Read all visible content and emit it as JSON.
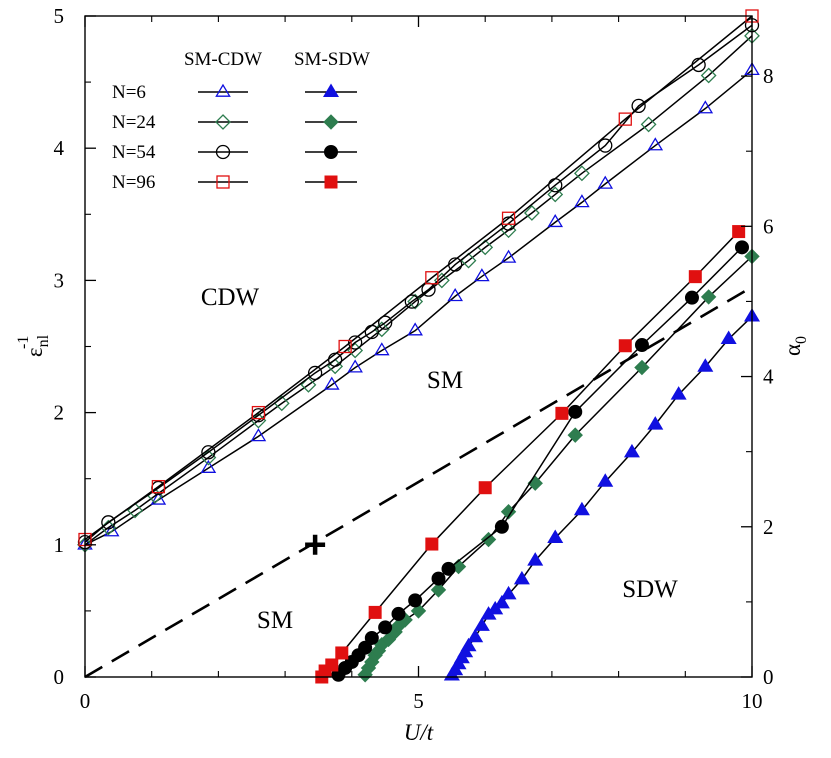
{
  "chart_data": {
    "type": "scatter",
    "title": "",
    "xlabel": "U/t",
    "ylabel_left": "ε_nl^-1",
    "ylabel_right": "α_0",
    "xlim": [
      0,
      10
    ],
    "ylim_left": [
      0,
      5
    ],
    "ylim_right": [
      0,
      8.8
    ],
    "x_ticks": [
      "0",
      "5",
      "10"
    ],
    "y_left_ticks": [
      "0",
      "1",
      "2",
      "3",
      "4",
      "5"
    ],
    "y_right_ticks": [
      "0",
      "2",
      "4",
      "6",
      "8"
    ],
    "grid": false,
    "legend": {
      "placement": "top-left",
      "header_open": "SM-CDW",
      "header_filled": "SM-SDW",
      "entries": [
        "N=6",
        "N=24",
        "N=54",
        "N=96"
      ]
    },
    "region_labels": [
      "CDW",
      "SM",
      "SM",
      "SDW"
    ],
    "marker_point": {
      "x": 3.45,
      "y": 1.0
    },
    "dashed_line": {
      "axis": "left",
      "points": [
        [
          0,
          0
        ],
        [
          10,
          2.95
        ]
      ]
    },
    "series": [
      {
        "name": "N=6",
        "group": "SM-CDW",
        "axis": "left",
        "color": "#1010e0",
        "marker": "triangle",
        "filled": false,
        "x": [
          0,
          0.4,
          1.1,
          1.85,
          2.6,
          3.7,
          4.05,
          4.45,
          4.95,
          5.55,
          5.95,
          6.35,
          7.05,
          7.45,
          7.8,
          8.55,
          9.3,
          10
        ],
        "y": [
          1.0,
          1.1,
          1.34,
          1.58,
          1.82,
          2.21,
          2.34,
          2.47,
          2.62,
          2.88,
          3.03,
          3.17,
          3.44,
          3.59,
          3.73,
          4.02,
          4.3,
          4.59
        ]
      },
      {
        "name": "N=24",
        "group": "SM-CDW",
        "axis": "left",
        "color": "#2e7d4f",
        "marker": "diamond",
        "filled": false,
        "x": [
          0,
          0.35,
          0.75,
          1.05,
          1.85,
          2.6,
          2.95,
          3.35,
          3.75,
          4.05,
          4.45,
          4.95,
          5.35,
          5.75,
          6.0,
          6.35,
          6.7,
          7.05,
          7.45,
          8.45,
          9.35,
          10
        ],
        "y": [
          1.0,
          1.13,
          1.26,
          1.37,
          1.66,
          1.94,
          2.07,
          2.21,
          2.35,
          2.47,
          2.63,
          2.84,
          3.0,
          3.15,
          3.25,
          3.38,
          3.51,
          3.65,
          3.81,
          4.18,
          4.55,
          4.85
        ]
      },
      {
        "name": "N=54",
        "group": "SM-CDW",
        "axis": "left",
        "color": "#000000",
        "marker": "circle",
        "filled": false,
        "x": [
          0,
          0.35,
          1.1,
          1.85,
          2.6,
          3.45,
          3.75,
          4.05,
          4.3,
          4.5,
          4.9,
          5.15,
          5.55,
          6.35,
          7.05,
          7.8,
          8.3,
          9.2,
          10
        ],
        "y": [
          1.02,
          1.17,
          1.43,
          1.7,
          1.98,
          2.3,
          2.4,
          2.53,
          2.61,
          2.68,
          2.84,
          2.93,
          3.12,
          3.43,
          3.72,
          4.02,
          4.32,
          4.63,
          4.93
        ]
      },
      {
        "name": "N=96",
        "group": "SM-CDW",
        "axis": "left",
        "color": "#e01010",
        "marker": "square",
        "filled": false,
        "x": [
          0,
          1.1,
          2.6,
          3.9,
          5.2,
          6.35,
          8.1,
          10
        ],
        "y": [
          1.04,
          1.44,
          2.0,
          2.5,
          3.02,
          3.47,
          4.22,
          5.0
        ]
      },
      {
        "name": "N=6",
        "group": "SM-SDW",
        "axis": "right",
        "color": "#1010e0",
        "marker": "triangle",
        "filled": true,
        "x": [
          5.5,
          5.55,
          5.6,
          5.65,
          5.7,
          5.75,
          5.85,
          5.95,
          6.05,
          6.15,
          6.25,
          6.35,
          6.55,
          6.75,
          7.05,
          7.45,
          7.8,
          8.2,
          8.55,
          8.9,
          9.3,
          9.65,
          10
        ],
        "y": [
          0.02,
          0.09,
          0.17,
          0.25,
          0.33,
          0.41,
          0.53,
          0.68,
          0.83,
          0.9,
          0.98,
          1.1,
          1.3,
          1.55,
          1.85,
          2.22,
          2.6,
          2.99,
          3.36,
          3.76,
          4.13,
          4.5,
          4.8
        ]
      },
      {
        "name": "N=24",
        "group": "SM-SDW",
        "axis": "right",
        "color": "#2e7d4f",
        "marker": "diamond",
        "filled": true,
        "x": [
          4.2,
          4.25,
          4.3,
          4.35,
          4.4,
          4.45,
          4.55,
          4.65,
          4.7,
          4.8,
          5.0,
          5.3,
          5.6,
          6.05,
          6.35,
          6.75,
          7.35,
          8.35,
          9.35,
          10
        ],
        "y": [
          0.03,
          0.12,
          0.2,
          0.29,
          0.35,
          0.43,
          0.5,
          0.6,
          0.68,
          0.76,
          0.88,
          1.16,
          1.47,
          1.83,
          2.2,
          2.58,
          3.22,
          4.12,
          5.06,
          5.6
        ]
      },
      {
        "name": "N=54",
        "group": "SM-SDW",
        "axis": "right",
        "color": "#000000",
        "marker": "circle",
        "filled": true,
        "x": [
          3.8,
          3.9,
          4.0,
          4.1,
          4.2,
          4.3,
          4.5,
          4.7,
          4.95,
          5.3,
          5.45,
          6.25,
          7.35,
          8.35,
          9.1,
          9.85
        ],
        "y": [
          0.03,
          0.12,
          0.2,
          0.29,
          0.39,
          0.52,
          0.66,
          0.84,
          1.02,
          1.31,
          1.44,
          2.0,
          3.53,
          4.42,
          5.05,
          5.72
        ]
      },
      {
        "name": "N=96",
        "group": "SM-SDW",
        "axis": "right",
        "color": "#e01010",
        "marker": "square",
        "filled": true,
        "x": [
          3.55,
          3.6,
          3.7,
          3.85,
          4.35,
          5.2,
          6.0,
          7.15,
          8.1,
          9.15,
          9.8
        ],
        "y": [
          0.0,
          0.08,
          0.16,
          0.32,
          0.86,
          1.77,
          2.52,
          3.51,
          4.41,
          5.33,
          5.93
        ]
      }
    ]
  }
}
